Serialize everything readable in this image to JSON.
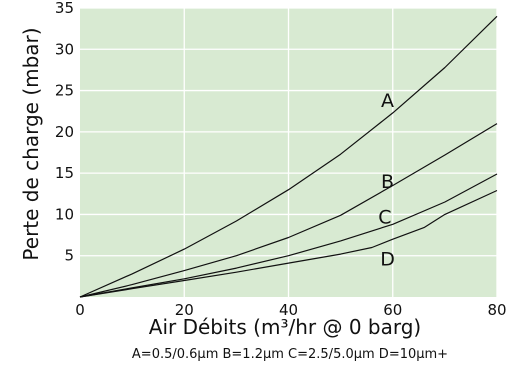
{
  "chart_data": {
    "type": "line",
    "xlabel": "Air Débits (m³/hr @ 0 barg)",
    "ylabel": "Perte de charge  (mbar)",
    "footnote": "A=0.5/0.6μm B=1.2μm C=2.5/5.0μm D=10μm+",
    "xlim": [
      0,
      80
    ],
    "ylim": [
      0,
      35
    ],
    "x_ticks": [
      "0",
      "20",
      "40",
      "60",
      "80"
    ],
    "y_ticks": [
      "5",
      "10",
      "15",
      "20",
      "25",
      "30",
      "35"
    ],
    "grid": true,
    "background_color": "#d8ead2",
    "grid_color": "#ffffff",
    "line_color": "#111111",
    "series": [
      {
        "name": "A",
        "x": [
          0,
          10,
          20,
          30,
          40,
          50,
          60,
          70,
          80
        ],
        "y": [
          0,
          2.8,
          5.8,
          9.2,
          13.0,
          17.3,
          22.3,
          27.8,
          34.0
        ]
      },
      {
        "name": "B",
        "x": [
          0,
          10,
          20,
          30,
          40,
          50,
          60,
          70,
          80
        ],
        "y": [
          0,
          1.5,
          3.2,
          5.0,
          7.2,
          9.9,
          13.5,
          17.2,
          21.0
        ]
      },
      {
        "name": "C",
        "x": [
          0,
          10,
          20,
          30,
          40,
          50,
          60,
          70,
          80
        ],
        "y": [
          0,
          1.1,
          2.2,
          3.5,
          5.0,
          6.8,
          8.8,
          11.5,
          14.9
        ]
      },
      {
        "name": "D",
        "x": [
          0,
          10,
          20,
          30,
          40,
          50,
          56,
          60,
          66,
          70,
          80
        ],
        "y": [
          0,
          1.0,
          2.0,
          3.0,
          4.1,
          5.2,
          6.0,
          7.0,
          8.4,
          10.0,
          12.9
        ]
      }
    ],
    "curve_labels": [
      {
        "text": "A",
        "x": 59,
        "y": 23
      },
      {
        "text": "B",
        "x": 59,
        "y": 13.2
      },
      {
        "text": "C",
        "x": 58.5,
        "y": 8.9
      },
      {
        "text": "D",
        "x": 59,
        "y": 3.8
      }
    ]
  }
}
